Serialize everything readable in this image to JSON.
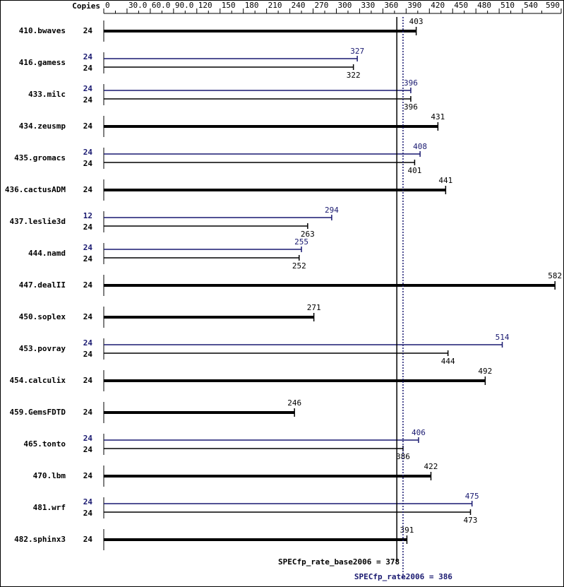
{
  "chart_data": {
    "type": "bar",
    "copies_label": "Copies",
    "xlim": [
      0,
      590
    ],
    "xticks": [
      0,
      {
        "value": 30,
        "label": "30.0"
      },
      {
        "value": 60,
        "label": "60.0"
      },
      {
        "value": 90,
        "label": "90.0"
      },
      120,
      150,
      180,
      210,
      240,
      270,
      300,
      330,
      360,
      390,
      420,
      450,
      480,
      510,
      540,
      590
    ],
    "base_color": "#000000",
    "peak_color": "#191970",
    "benchmarks": [
      {
        "name": "410.bwaves",
        "base": {
          "copies": 24,
          "value": 403
        }
      },
      {
        "name": "416.gamess",
        "peak": {
          "copies": 24,
          "value": 327
        },
        "base": {
          "copies": 24,
          "value": 322
        }
      },
      {
        "name": "433.milc",
        "peak": {
          "copies": 24,
          "value": 396
        },
        "base": {
          "copies": 24,
          "value": 396
        }
      },
      {
        "name": "434.zeusmp",
        "base": {
          "copies": 24,
          "value": 431
        }
      },
      {
        "name": "435.gromacs",
        "peak": {
          "copies": 24,
          "value": 408
        },
        "base": {
          "copies": 24,
          "value": 401
        }
      },
      {
        "name": "436.cactusADM",
        "base": {
          "copies": 24,
          "value": 441
        }
      },
      {
        "name": "437.leslie3d",
        "peak": {
          "copies": 12,
          "value": 294
        },
        "base": {
          "copies": 24,
          "value": 263
        }
      },
      {
        "name": "444.namd",
        "peak": {
          "copies": 24,
          "value": 255
        },
        "base": {
          "copies": 24,
          "value": 252
        }
      },
      {
        "name": "447.dealII",
        "base": {
          "copies": 24,
          "value": 582
        }
      },
      {
        "name": "450.soplex",
        "base": {
          "copies": 24,
          "value": 271
        }
      },
      {
        "name": "453.povray",
        "peak": {
          "copies": 24,
          "value": 514
        },
        "base": {
          "copies": 24,
          "value": 444
        }
      },
      {
        "name": "454.calculix",
        "base": {
          "copies": 24,
          "value": 492
        }
      },
      {
        "name": "459.GemsFDTD",
        "base": {
          "copies": 24,
          "value": 246
        }
      },
      {
        "name": "465.tonto",
        "peak": {
          "copies": 24,
          "value": 406
        },
        "base": {
          "copies": 24,
          "value": 386
        }
      },
      {
        "name": "470.lbm",
        "base": {
          "copies": 24,
          "value": 422
        }
      },
      {
        "name": "481.wrf",
        "peak": {
          "copies": 24,
          "value": 475
        },
        "base": {
          "copies": 24,
          "value": 473
        }
      },
      {
        "name": "482.sphinx3",
        "base": {
          "copies": 24,
          "value": 391
        }
      }
    ],
    "reference_lines": [
      {
        "label": "SPECfp_rate_base2006 = 378",
        "value": 378,
        "color": "#000000",
        "style": "solid"
      },
      {
        "label": "SPECfp_rate2006 = 386",
        "value": 386,
        "color": "#191970",
        "style": "dotted"
      }
    ]
  }
}
